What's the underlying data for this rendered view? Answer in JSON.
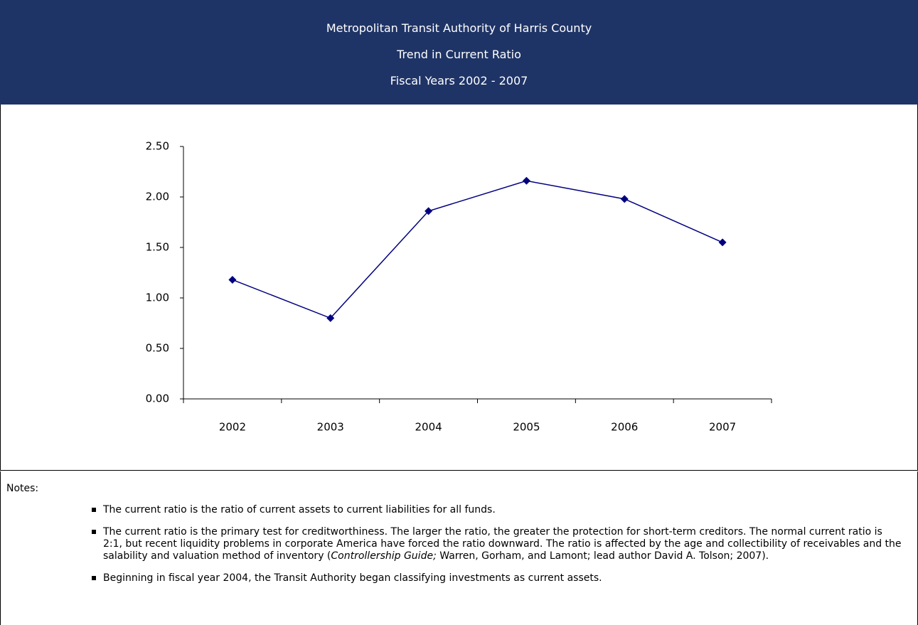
{
  "chart_data": {
    "type": "line",
    "title": [
      "Metropolitan Transit Authority of Harris County",
      "Trend  in Current Ratio",
      "Fiscal Years 2002 - 2007"
    ],
    "categories": [
      "2002",
      "2003",
      "2004",
      "2005",
      "2006",
      "2007"
    ],
    "series": [
      {
        "color": "#000080",
        "values": [
          1.18,
          0.8,
          1.86,
          2.16,
          1.98,
          1.55
        ]
      }
    ],
    "ylim": [
      0,
      2.5
    ],
    "yticks": [
      {
        "value": 0,
        "label": "0.00"
      },
      {
        "value": 0.5,
        "label": "0.50"
      },
      {
        "value": 1,
        "label": "1.00"
      },
      {
        "value": 1.5,
        "label": "1.50"
      },
      {
        "value": 2,
        "label": "2.00"
      },
      {
        "value": 2.5,
        "label": "2.50"
      }
    ],
    "grid": false
  },
  "notes": {
    "heading": "Notes:",
    "items": [
      [
        "The current ratio is the ratio of current assets to current liabilities for all funds."
      ],
      [
        "The current ratio is the primary test for creditworthiness. The larger the ratio, the greater the protection for short-term creditors. The normal current ratio is 2:1, but recent liquidity problems in corporate America have forced the ratio downward. The ratio is affected by the age and collectibility of receivables and the salability and valuation method of inventory (",
        "Controllership Guide;",
        " Warren, Gorham, and Lamont; lead author David A. Tolson; 2007)."
      ],
      [
        "Beginning in fiscal year 2004, the Transit Authority began classifying investments as current assets."
      ]
    ]
  }
}
